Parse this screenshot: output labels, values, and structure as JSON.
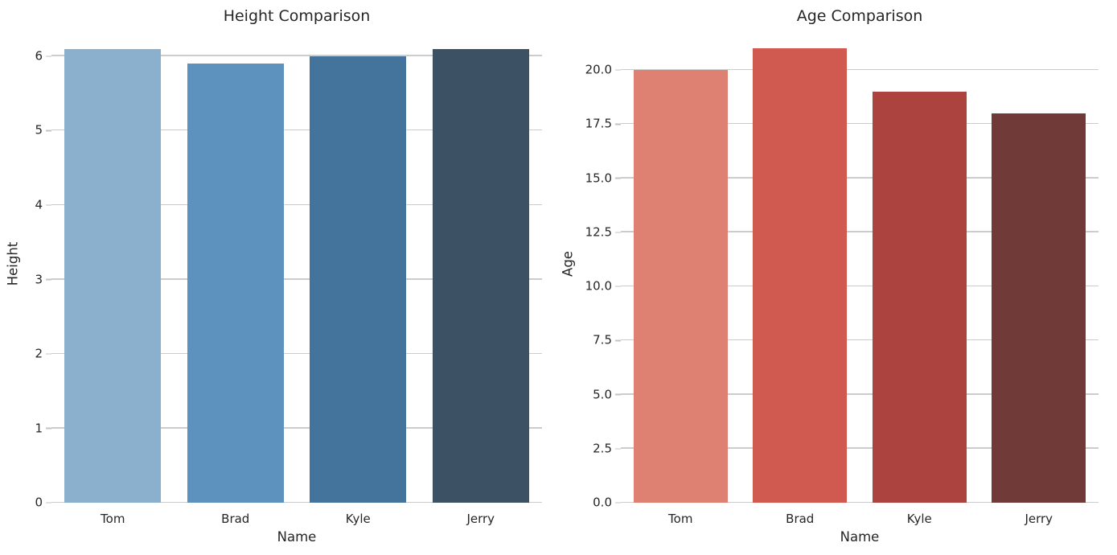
{
  "figure": {
    "background": "#ffffff"
  },
  "style": {
    "text_color": "#262626",
    "grid_color": "#cccccc",
    "tick_color": "#c3c3c3"
  },
  "chart_data": [
    {
      "type": "bar",
      "title": "Height Comparison",
      "xlabel": "Name",
      "ylabel": "Height",
      "categories": [
        "Tom",
        "Brad",
        "Kyle",
        "Jerry"
      ],
      "values": [
        6.1,
        5.9,
        6.0,
        6.1
      ],
      "bar_colors": [
        "#8ab0ce",
        "#5c92bd",
        "#44739b",
        "#3c5164"
      ],
      "yticks": [
        0,
        1,
        2,
        3,
        4,
        5,
        6
      ],
      "ytick_labels": [
        "0",
        "1",
        "2",
        "3",
        "4",
        "5",
        "6"
      ],
      "ylim": [
        0,
        6.41
      ],
      "grid": true,
      "legend": "none"
    },
    {
      "type": "bar",
      "title": "Age Comparison",
      "xlabel": "Name",
      "ylabel": "Age",
      "categories": [
        "Tom",
        "Brad",
        "Kyle",
        "Jerry"
      ],
      "values": [
        20,
        21,
        19,
        18
      ],
      "bar_colors": [
        "#de8172",
        "#d05a50",
        "#ac433f",
        "#703a38"
      ],
      "yticks": [
        0,
        2.5,
        5,
        7.5,
        10,
        12.5,
        15,
        17.5,
        20
      ],
      "ytick_labels": [
        "0.0",
        "2.5",
        "5.0",
        "7.5",
        "10.0",
        "12.5",
        "15.0",
        "17.5",
        "20.0"
      ],
      "ylim": [
        0,
        22.05
      ],
      "grid": true,
      "legend": "none"
    }
  ]
}
